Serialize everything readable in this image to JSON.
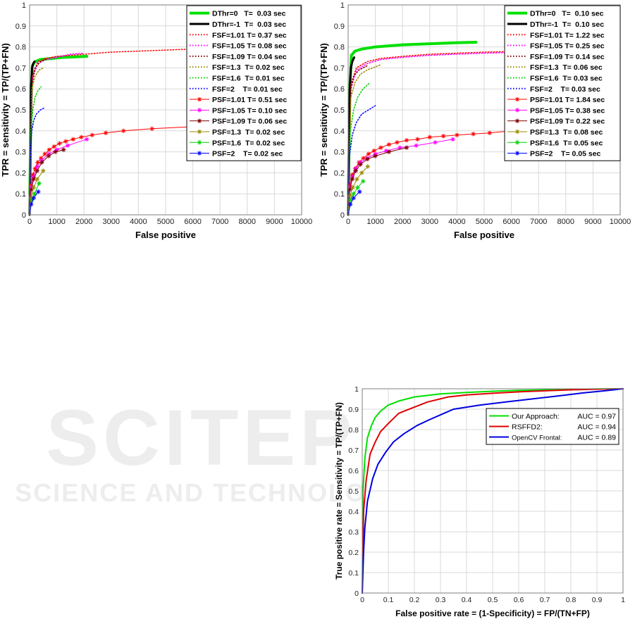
{
  "watermark": {
    "title": "SCITEPRESS",
    "subtitle": "SCIENCE AND TECHNOLOGY PUBLICATIONS"
  },
  "chart_data": [
    {
      "type": "line",
      "xlabel": "False positive",
      "ylabel": "TPR = sensitivity = TP/(TP+FN)",
      "xlim": [
        0,
        10000
      ],
      "ylim": [
        0,
        1
      ],
      "xticks": [
        0,
        1000,
        2000,
        3000,
        4000,
        5000,
        6000,
        7000,
        8000,
        9000,
        10000
      ],
      "yticks": [
        0,
        0.1,
        0.2,
        0.3,
        0.4,
        0.5,
        0.6,
        0.7,
        0.8,
        0.9,
        1
      ],
      "grid": true,
      "legend_position": "top-right",
      "series": [
        {
          "name": "DThr=0   T=  0.03 sec",
          "color": "#00e000",
          "style": "solid",
          "width": 4,
          "marker": "none",
          "x": [
            10,
            50,
            100,
            200,
            400,
            800,
            1200,
            1600,
            2100
          ],
          "y": [
            0.1,
            0.55,
            0.71,
            0.73,
            0.74,
            0.745,
            0.75,
            0.752,
            0.755
          ]
        },
        {
          "name": "DThr=-1  T=  0.03 sec",
          "color": "#000000",
          "style": "solid",
          "width": 3,
          "marker": "none",
          "x": [
            0,
            30,
            60,
            90,
            130,
            180
          ],
          "y": [
            0.0,
            0.35,
            0.62,
            0.7,
            0.72,
            0.73
          ]
        },
        {
          "name": "FSF=1.01 T= 0.37 sec",
          "color": "#ff0000",
          "style": "dotted",
          "width": 1.5,
          "marker": "none",
          "x": [
            0,
            100,
            300,
            600,
            1000,
            1500,
            2000,
            3000,
            4000,
            5000,
            6000,
            7000,
            8000,
            9000,
            10000
          ],
          "y": [
            0.0,
            0.66,
            0.73,
            0.745,
            0.755,
            0.76,
            0.765,
            0.775,
            0.78,
            0.785,
            0.79,
            0.795,
            0.8,
            0.803,
            0.805
          ]
        },
        {
          "name": "FSF=1.05 T= 0.08 sec",
          "color": "#ff00ff",
          "style": "dotted",
          "width": 1.5,
          "marker": "none",
          "x": [
            0,
            100,
            300,
            600,
            1000,
            1500,
            2000
          ],
          "y": [
            0.0,
            0.65,
            0.72,
            0.74,
            0.75,
            0.765,
            0.77
          ]
        },
        {
          "name": "FSF=1.09 T= 0.04 sec",
          "color": "#800000",
          "style": "dotted",
          "width": 1.5,
          "marker": "none",
          "x": [
            0,
            100,
            200,
            400,
            600
          ],
          "y": [
            0.0,
            0.63,
            0.7,
            0.73,
            0.74
          ]
        },
        {
          "name": "FSF=1.3  T= 0.02 sec",
          "color": "#9a8a00",
          "style": "dotted",
          "width": 1.5,
          "marker": "none",
          "x": [
            0,
            80,
            200,
            350,
            500
          ],
          "y": [
            0.0,
            0.6,
            0.66,
            0.69,
            0.7
          ]
        },
        {
          "name": "FSF=1.6  T= 0.01 sec",
          "color": "#00d000",
          "style": "dotted",
          "width": 1.5,
          "marker": "none",
          "x": [
            0,
            50,
            120,
            200,
            300,
            420
          ],
          "y": [
            0.0,
            0.4,
            0.5,
            0.56,
            0.59,
            0.61
          ]
        },
        {
          "name": "FSF=2    T= 0.01 sec",
          "color": "#0000ff",
          "style": "dotted",
          "width": 1.5,
          "marker": "none",
          "x": [
            0,
            30,
            80,
            150,
            250,
            400,
            550
          ],
          "y": [
            0.0,
            0.3,
            0.4,
            0.45,
            0.48,
            0.5,
            0.51
          ]
        },
        {
          "name": "PSF=1.01 T= 0.51 sec",
          "color": "#ff0000",
          "style": "solid",
          "width": 1,
          "marker": "star",
          "x": [
            0,
            50,
            120,
            200,
            300,
            420,
            560,
            720,
            900,
            1100,
            1330,
            1600,
            1900,
            2300,
            2800,
            3450,
            4500,
            6000
          ],
          "y": [
            0.0,
            0.14,
            0.19,
            0.22,
            0.25,
            0.27,
            0.29,
            0.31,
            0.325,
            0.34,
            0.35,
            0.36,
            0.37,
            0.38,
            0.39,
            0.4,
            0.41,
            0.42
          ]
        },
        {
          "name": "PSF=1.05 T= 0.10 sec",
          "color": "#ff00ff",
          "style": "solid",
          "width": 1,
          "marker": "star",
          "x": [
            0,
            60,
            150,
            280,
            450,
            700,
            1000,
            1400,
            2100
          ],
          "y": [
            0.0,
            0.13,
            0.18,
            0.23,
            0.26,
            0.29,
            0.31,
            0.33,
            0.36
          ]
        },
        {
          "name": "PSF=1.09 T= 0.06 sec",
          "color": "#800000",
          "style": "solid",
          "width": 1,
          "marker": "star",
          "x": [
            0,
            60,
            150,
            280,
            450,
            700,
            950,
            1250
          ],
          "y": [
            0.0,
            0.12,
            0.17,
            0.21,
            0.25,
            0.28,
            0.3,
            0.31
          ]
        },
        {
          "name": "PSF=1.3  T= 0.02 sec",
          "color": "#9a8a00",
          "style": "solid",
          "width": 1,
          "marker": "star",
          "x": [
            0,
            60,
            150,
            280,
            500
          ],
          "y": [
            0.0,
            0.08,
            0.13,
            0.17,
            0.21
          ]
        },
        {
          "name": "PSF=1.6  T= 0.02 sec",
          "color": "#00d000",
          "style": "solid",
          "width": 1,
          "marker": "star",
          "x": [
            0,
            80,
            180,
            350
          ],
          "y": [
            0.0,
            0.07,
            0.1,
            0.15
          ]
        },
        {
          "name": "PSF=2    T= 0.02 sec",
          "color": "#0000ff",
          "style": "solid",
          "width": 1,
          "marker": "star",
          "x": [
            0,
            60,
            150,
            320
          ],
          "y": [
            0.0,
            0.05,
            0.08,
            0.11
          ]
        }
      ]
    },
    {
      "type": "line",
      "xlabel": "False positive",
      "ylabel": "TPR = sensitivity = TP/(TP+FN)",
      "xlim": [
        0,
        10000
      ],
      "ylim": [
        0,
        1
      ],
      "xticks": [
        0,
        1000,
        2000,
        3000,
        4000,
        5000,
        6000,
        7000,
        8000,
        9000,
        10000
      ],
      "yticks": [
        0,
        0.1,
        0.2,
        0.3,
        0.4,
        0.5,
        0.6,
        0.7,
        0.8,
        0.9,
        1
      ],
      "grid": true,
      "legend_position": "top-right",
      "series": [
        {
          "name": "DThr=0   T=  0.10 sec",
          "color": "#00e000",
          "style": "solid",
          "width": 4,
          "marker": "none",
          "x": [
            10,
            60,
            120,
            250,
            500,
            1000,
            2000,
            3000,
            4000,
            4700
          ],
          "y": [
            0.1,
            0.6,
            0.76,
            0.78,
            0.79,
            0.8,
            0.81,
            0.815,
            0.82,
            0.822
          ]
        },
        {
          "name": "DThr=-1  T=  0.10 sec",
          "color": "#000000",
          "style": "solid",
          "width": 3,
          "marker": "none",
          "x": [
            0,
            30,
            60,
            100,
            150,
            220
          ],
          "y": [
            0.0,
            0.35,
            0.6,
            0.7,
            0.73,
            0.75
          ]
        },
        {
          "name": "FSF=1.01 T= 1.22 sec",
          "color": "#ff0000",
          "style": "dotted",
          "width": 1.5,
          "marker": "none",
          "x": [
            0,
            100,
            300,
            700,
            1200,
            2000,
            3000,
            4000,
            5000,
            6000,
            7000,
            8000,
            9000,
            10000
          ],
          "y": [
            0.0,
            0.62,
            0.7,
            0.73,
            0.745,
            0.755,
            0.765,
            0.77,
            0.775,
            0.778,
            0.78,
            0.783,
            0.785,
            0.787
          ]
        },
        {
          "name": "FSF=1.05 T= 0.25 sec",
          "color": "#ff00ff",
          "style": "dotted",
          "width": 1.5,
          "marker": "none",
          "x": [
            0,
            100,
            300,
            700,
            1200,
            2000,
            3000,
            4000,
            5000,
            6000,
            7000,
            8000,
            9000,
            10000
          ],
          "y": [
            0.0,
            0.6,
            0.69,
            0.72,
            0.74,
            0.75,
            0.76,
            0.765,
            0.77,
            0.773,
            0.776,
            0.778,
            0.78,
            0.782
          ]
        },
        {
          "name": "FSF=1.09 T= 0.14 sec",
          "color": "#800000",
          "style": "dotted",
          "width": 1.5,
          "marker": "none",
          "x": [
            0,
            100,
            200,
            400,
            700
          ],
          "y": [
            0.0,
            0.6,
            0.66,
            0.69,
            0.71
          ]
        },
        {
          "name": "FSF=1.3  T= 0.06 sec",
          "color": "#9a8a00",
          "style": "dotted",
          "width": 1.5,
          "marker": "none",
          "x": [
            0,
            100,
            250,
            450,
            700,
            1000,
            1200
          ],
          "y": [
            0.0,
            0.56,
            0.63,
            0.67,
            0.69,
            0.705,
            0.715
          ]
        },
        {
          "name": "FSF=1.6  T= 0.03 sec",
          "color": "#00d000",
          "style": "dotted",
          "width": 1.5,
          "marker": "none",
          "x": [
            0,
            80,
            200,
            350,
            550,
            800
          ],
          "y": [
            0.0,
            0.4,
            0.5,
            0.56,
            0.6,
            0.63
          ]
        },
        {
          "name": "FSF=2    T= 0.03 sec",
          "color": "#0000ff",
          "style": "dotted",
          "width": 1.5,
          "marker": "none",
          "x": [
            0,
            50,
            150,
            300,
            500,
            750,
            1000
          ],
          "y": [
            0.0,
            0.28,
            0.38,
            0.44,
            0.48,
            0.5,
            0.52
          ]
        },
        {
          "name": "PSF=1.01 T= 1.84 sec",
          "color": "#ff0000",
          "style": "solid",
          "width": 1,
          "marker": "star",
          "x": [
            0,
            60,
            150,
            260,
            400,
            560,
            750,
            950,
            1200,
            1500,
            1800,
            2150,
            2550,
            3000,
            3500,
            4000,
            4600,
            5200,
            6000
          ],
          "y": [
            0.0,
            0.14,
            0.19,
            0.22,
            0.25,
            0.27,
            0.29,
            0.305,
            0.32,
            0.335,
            0.345,
            0.355,
            0.36,
            0.37,
            0.375,
            0.38,
            0.385,
            0.39,
            0.4
          ]
        },
        {
          "name": "PSF=1.05 T= 0.38 sec",
          "color": "#ff00ff",
          "style": "solid",
          "width": 1,
          "marker": "star",
          "x": [
            0,
            60,
            150,
            280,
            450,
            700,
            1000,
            1400,
            1900,
            2500,
            3200,
            3850
          ],
          "y": [
            0.0,
            0.13,
            0.18,
            0.22,
            0.25,
            0.27,
            0.29,
            0.305,
            0.32,
            0.33,
            0.345,
            0.36
          ]
        },
        {
          "name": "PSF=1.09 T= 0.22 sec",
          "color": "#800000",
          "style": "solid",
          "width": 1,
          "marker": "star",
          "x": [
            0,
            60,
            150,
            280,
            450,
            700,
            1000,
            1500,
            2150
          ],
          "y": [
            0.0,
            0.12,
            0.17,
            0.21,
            0.24,
            0.265,
            0.28,
            0.3,
            0.32
          ]
        },
        {
          "name": "PSF=1.3  T= 0.08 sec",
          "color": "#9a8a00",
          "style": "solid",
          "width": 1,
          "marker": "star",
          "x": [
            0,
            70,
            170,
            320,
            500,
            720
          ],
          "y": [
            0.0,
            0.09,
            0.13,
            0.17,
            0.2,
            0.23
          ]
        },
        {
          "name": "PSF=1.6  T= 0.05 sec",
          "color": "#00d000",
          "style": "solid",
          "width": 1,
          "marker": "star",
          "x": [
            0,
            80,
            200,
            350,
            550
          ],
          "y": [
            0.0,
            0.07,
            0.1,
            0.13,
            0.16
          ]
        },
        {
          "name": "PSF=2    T= 0.05 sec",
          "color": "#0000ff",
          "style": "solid",
          "width": 1,
          "marker": "star",
          "x": [
            0,
            80,
            200,
            420
          ],
          "y": [
            0.0,
            0.05,
            0.08,
            0.11
          ]
        }
      ]
    },
    {
      "type": "line",
      "xlabel": "False positive rate = (1-Specificity) = FP/(TN+FP)",
      "ylabel": "True positive rate = Sensitivity = TP/(TP+FN)",
      "xlim": [
        0,
        1
      ],
      "ylim": [
        0,
        1
      ],
      "xticks": [
        0,
        0.1,
        0.2,
        0.3,
        0.4,
        0.5,
        0.6,
        0.7,
        0.8,
        0.9,
        1
      ],
      "yticks": [
        0,
        0.1,
        0.2,
        0.3,
        0.4,
        0.5,
        0.6,
        0.7,
        0.8,
        0.9,
        1
      ],
      "grid": true,
      "legend_position": "top-right",
      "series": [
        {
          "name": "Our Approach:",
          "auc_label": "AUC =  0.97",
          "color": "#00e000",
          "style": "solid",
          "width": 2,
          "marker": "none",
          "x": [
            0,
            0.003,
            0.01,
            0.02,
            0.035,
            0.05,
            0.07,
            0.1,
            0.14,
            0.2,
            0.3,
            0.4,
            0.5,
            0.6,
            0.7,
            0.8,
            0.9,
            1.0
          ],
          "y": [
            0,
            0.5,
            0.66,
            0.76,
            0.82,
            0.86,
            0.89,
            0.92,
            0.94,
            0.96,
            0.975,
            0.982,
            0.988,
            0.992,
            0.995,
            0.997,
            0.999,
            1.0
          ]
        },
        {
          "name": "RSFFD2:",
          "auc_label": "AUC =  0.94",
          "color": "#e00000",
          "style": "solid",
          "width": 2,
          "marker": "none",
          "x": [
            0,
            0.005,
            0.015,
            0.03,
            0.05,
            0.07,
            0.1,
            0.14,
            0.2,
            0.25,
            0.33,
            0.4,
            0.5,
            0.6,
            0.7,
            0.8,
            0.9,
            1.0
          ],
          "y": [
            0,
            0.4,
            0.55,
            0.68,
            0.74,
            0.79,
            0.83,
            0.88,
            0.91,
            0.935,
            0.96,
            0.97,
            0.978,
            0.985,
            0.99,
            0.995,
            0.998,
            1.0
          ]
        },
        {
          "name": "OpenCV Frontal:",
          "auc_label": "AUC =  0.89",
          "color": "#0000e0",
          "style": "solid",
          "width": 2,
          "marker": "none",
          "x": [
            0,
            0.005,
            0.01,
            0.02,
            0.04,
            0.06,
            0.09,
            0.12,
            0.16,
            0.21,
            0.26,
            0.35,
            0.45,
            0.55,
            0.65,
            0.75,
            0.85,
            0.93,
            1.0
          ],
          "y": [
            0,
            0.2,
            0.32,
            0.45,
            0.56,
            0.63,
            0.69,
            0.74,
            0.78,
            0.82,
            0.85,
            0.9,
            0.92,
            0.935,
            0.95,
            0.965,
            0.98,
            0.99,
            1.0
          ]
        }
      ]
    }
  ]
}
